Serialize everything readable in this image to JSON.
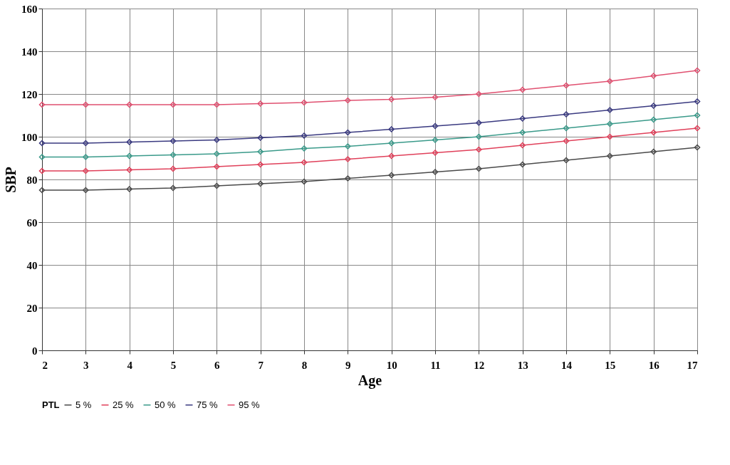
{
  "chart_data": {
    "type": "line",
    "xlabel": "Age",
    "ylabel": "SBP",
    "legend_title": "PTL",
    "x": [
      2,
      3,
      4,
      5,
      6,
      7,
      8,
      9,
      10,
      11,
      12,
      13,
      14,
      15,
      16,
      17
    ],
    "series": [
      {
        "name": "5 %",
        "color": "#4a4a4a",
        "values": [
          75,
          75,
          75.5,
          76,
          77,
          78,
          79,
          80.5,
          82,
          83.5,
          85,
          87,
          89,
          91,
          93,
          95
        ]
      },
      {
        "name": "25 %",
        "color": "#e0405a",
        "values": [
          84,
          84,
          84.5,
          85,
          86,
          87,
          88,
          89.5,
          91,
          92.5,
          94,
          96,
          98,
          100,
          102,
          104
        ]
      },
      {
        "name": "50 %",
        "color": "#3a9a8a",
        "values": [
          90.5,
          90.5,
          91,
          91.5,
          92,
          93,
          94.5,
          95.5,
          97,
          98.5,
          100,
          102,
          104,
          106,
          108,
          110
        ]
      },
      {
        "name": "75 %",
        "color": "#3a3a80",
        "values": [
          97,
          97,
          97.5,
          98,
          98.5,
          99.5,
          100.5,
          102,
          103.5,
          105,
          106.5,
          108.5,
          110.5,
          112.5,
          114.5,
          116.5
        ]
      },
      {
        "name": "95 %",
        "color": "#e05070",
        "values": [
          115,
          115,
          115,
          115,
          115,
          115.5,
          116,
          117,
          117.5,
          118.5,
          120,
          122,
          124,
          126,
          128.5,
          131
        ]
      }
    ],
    "xlim": [
      2,
      17
    ],
    "xticks": [
      2,
      3,
      4,
      5,
      6,
      7,
      8,
      9,
      10,
      11,
      12,
      13,
      14,
      15,
      16,
      17
    ],
    "ylim": [
      0,
      160
    ],
    "yticks": [
      0,
      20,
      40,
      60,
      80,
      100,
      120,
      140,
      160
    ],
    "grid": true,
    "legend": "bottom",
    "marker": "diamond",
    "line_style": "solid"
  }
}
